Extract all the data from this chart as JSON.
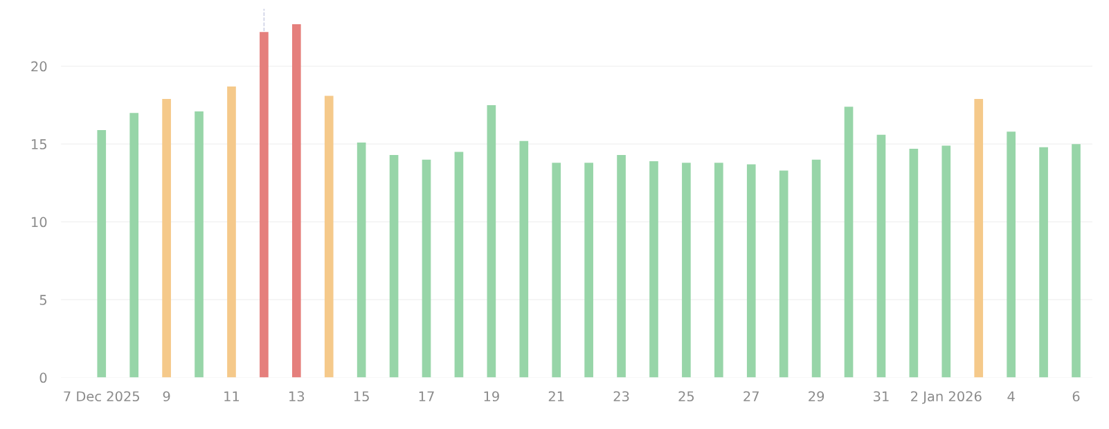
{
  "chart_data": {
    "type": "bar",
    "x": [
      "2025-12-07",
      "2025-12-08",
      "2025-12-09",
      "2025-12-10",
      "2025-12-11",
      "2025-12-12",
      "2025-12-13",
      "2025-12-14",
      "2025-12-15",
      "2025-12-16",
      "2025-12-17",
      "2025-12-18",
      "2025-12-19",
      "2025-12-20",
      "2025-12-21",
      "2025-12-22",
      "2025-12-23",
      "2025-12-24",
      "2025-12-25",
      "2025-12-26",
      "2025-12-27",
      "2025-12-28",
      "2025-12-29",
      "2025-12-30",
      "2025-12-31",
      "2026-01-01",
      "2026-01-02",
      "2026-01-03",
      "2026-01-04",
      "2026-01-05",
      "2026-01-06"
    ],
    "values": [
      15.9,
      17.0,
      17.9,
      17.1,
      18.7,
      22.2,
      22.7,
      18.1,
      15.1,
      14.3,
      14.0,
      14.5,
      17.5,
      15.2,
      13.8,
      13.8,
      14.3,
      13.9,
      13.8,
      13.8,
      13.7,
      13.3,
      14.0,
      17.4,
      15.6,
      14.7,
      14.9,
      17.9,
      15.8,
      14.8,
      15.0
    ],
    "colors": [
      "#97d5a8",
      "#97d5a8",
      "#f5c98a",
      "#97d5a8",
      "#f5c98a",
      "#e57f7c",
      "#e57f7c",
      "#f5c98a",
      "#97d5a8",
      "#97d5a8",
      "#97d5a8",
      "#97d5a8",
      "#97d5a8",
      "#97d5a8",
      "#97d5a8",
      "#97d5a8",
      "#97d5a8",
      "#97d5a8",
      "#97d5a8",
      "#97d5a8",
      "#97d5a8",
      "#97d5a8",
      "#97d5a8",
      "#97d5a8",
      "#97d5a8",
      "#97d5a8",
      "#97d5a8",
      "#f5c98a",
      "#97d5a8",
      "#97d5a8",
      "#97d5a8"
    ],
    "xlim": [
      "2025-12-05T18:00",
      "2026-01-06T12:00"
    ],
    "xticks": [
      {
        "value": "2025-12-07",
        "label": "7 Dec 2025"
      },
      {
        "value": "2025-12-09",
        "label": "9"
      },
      {
        "value": "2025-12-11",
        "label": "11"
      },
      {
        "value": "2025-12-13",
        "label": "13"
      },
      {
        "value": "2025-12-15",
        "label": "15"
      },
      {
        "value": "2025-12-17",
        "label": "17"
      },
      {
        "value": "2025-12-19",
        "label": "19"
      },
      {
        "value": "2025-12-21",
        "label": "21"
      },
      {
        "value": "2025-12-23",
        "label": "23"
      },
      {
        "value": "2025-12-25",
        "label": "25"
      },
      {
        "value": "2025-12-27",
        "label": "27"
      },
      {
        "value": "2025-12-29",
        "label": "29"
      },
      {
        "value": "2025-12-31",
        "label": "31"
      },
      {
        "value": "2026-01-02",
        "label": "2 Jan 2026"
      },
      {
        "value": "2026-01-04",
        "label": "4"
      },
      {
        "value": "2026-01-06",
        "label": "6"
      }
    ],
    "ylim": [
      0,
      23.7
    ],
    "yticks": [
      0,
      5,
      10,
      15,
      20
    ],
    "grid": "y",
    "ref_lines": [
      {
        "axis": "x",
        "value": "2025-12-12",
        "color": "#c5c9e0",
        "line_style": "dashed"
      }
    ]
  }
}
